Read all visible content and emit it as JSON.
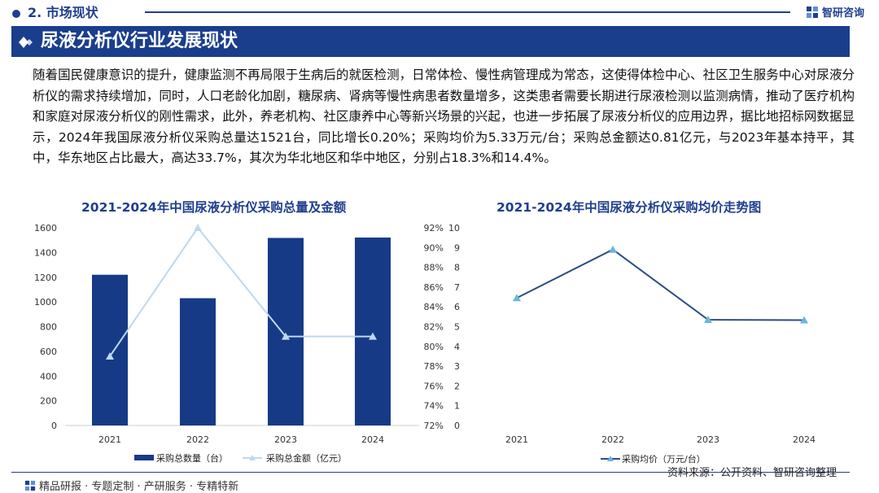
{
  "header": {
    "section_title": "2. 市场现状",
    "logo_text": "智研咨询"
  },
  "banner": {
    "title": "尿液分析仪行业发展现状"
  },
  "paragraph": "随着国民健康意识的提升，健康监测不再局限于生病后的就医检测，日常体检、慢性病管理成为常态，这使得体检中心、社区卫生服务中心对尿液分析仪的需求持续增加，同时，人口老龄化加剧，糖尿病、肾病等慢性病患者数量增多，这类患者需要长期进行尿液检测以监测病情，推动了医疗机构和家庭对尿液分析仪的刚性需求，此外，养老机构、社区康养中心等新兴场景的兴起，也进一步拓展了尿液分析仪的应用边界，据比地招标网数据显示，2024年我国尿液分析仪采购总量达1521台，同比增长0.20%；采购均价为5.33万元/台；采购总金额达0.81亿元，与2023年基本持平，其中，华东地区占比最大，高达33.7%，其次为华北地区和华中地区，分别占18.3%和14.4%。",
  "colors": {
    "brand": "#1f3f8f",
    "bar": "#173a86",
    "line_light": "#bcd9f0",
    "line_dark": "#2d4d86",
    "marker": "#6bb7db"
  },
  "chart_data": [
    {
      "type": "bar",
      "title": "2021-2024年中国尿液分析仪采购总量及金额",
      "categories": [
        "2021",
        "2022",
        "2023",
        "2024"
      ],
      "y_ticks": [
        "0",
        "200",
        "400",
        "600",
        "800",
        "1000",
        "1200",
        "1400",
        "1600"
      ],
      "ylim": [
        0,
        1600
      ],
      "series": [
        {
          "name": "采购总数量（台）",
          "type": "bar",
          "values": [
            1220,
            1030,
            1518,
            1521
          ]
        },
        {
          "name": "采购总金额（亿元）",
          "type": "line",
          "values": [
            0.79,
            0.92,
            0.81,
            0.81
          ]
        }
      ],
      "secondary_ylim": [
        0.72,
        0.92
      ]
    },
    {
      "type": "line",
      "title": "2021-2024年中国尿液分析仪采购均价走势图",
      "categories": [
        "2021",
        "2022",
        "2023",
        "2024"
      ],
      "y_ticks": [
        "0",
        "1",
        "2",
        "3",
        "4",
        "5",
        "6",
        "7",
        "8",
        "9",
        "10"
      ],
      "ylim": [
        0,
        10
      ],
      "left_axis_ticks": [
        "72%",
        "74%",
        "76%",
        "78%",
        "80%",
        "82%",
        "84%",
        "86%",
        "88%",
        "90%",
        "92%"
      ],
      "series": [
        {
          "name": "采购均价（万元/台）",
          "values": [
            6.45,
            8.9,
            5.35,
            5.33
          ]
        }
      ]
    }
  ],
  "footer": {
    "left": "精品研报 · 专题定制 · 产研服务 · 专精特新",
    "source": "资料来源：公开资料、智研咨询整理"
  }
}
